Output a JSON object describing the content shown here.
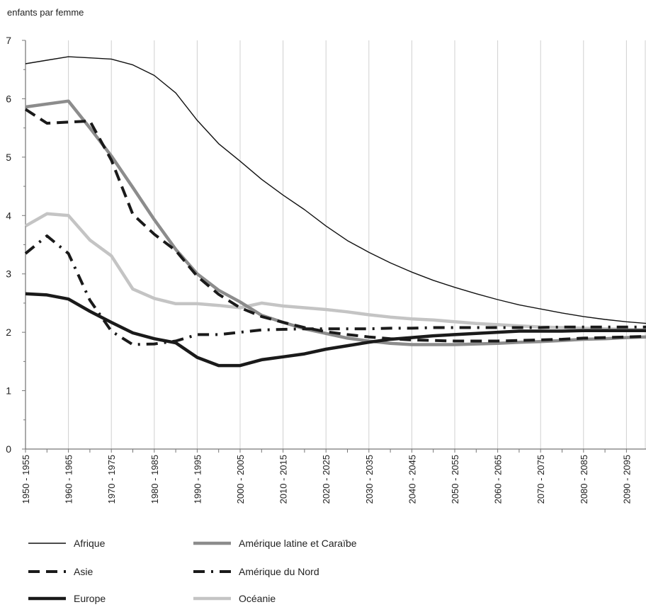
{
  "chart_data": {
    "type": "line",
    "ylabel": "enfants par femme",
    "ylim": [
      0,
      7
    ],
    "yticks": [
      0,
      1,
      2,
      3,
      4,
      5,
      6,
      7
    ],
    "grid": "vertical",
    "legend_position": "bottom",
    "x": [
      "1950-1955",
      "1955-1960",
      "1960-1965",
      "1965-1970",
      "1970-1975",
      "1975-1980",
      "1980-1985",
      "1985-1990",
      "1990-1995",
      "1995-2000",
      "2000-2005",
      "2005-2010",
      "2010-2015",
      "2015-2020",
      "2020-2025",
      "2025-2030",
      "2030-2035",
      "2035-2040",
      "2040-2045",
      "2045-2050",
      "2050-2055",
      "2055-2060",
      "2060-2065",
      "2065-2070",
      "2070-2075",
      "2075-2080",
      "2080-2085",
      "2085-2090",
      "2090-2095",
      "2095-2100"
    ],
    "xtick_labels": [
      "1950-1955",
      "1960-1965",
      "1970-1975",
      "1980-1985",
      "1990-1995",
      "2000-2005",
      "2010-2015",
      "2020-2025",
      "2030-2035",
      "2040-2045",
      "2050-2055",
      "2060-2065",
      "2070-2075",
      "2080-2085",
      "2090-2095"
    ],
    "series": [
      {
        "name": "Afrique",
        "color": "#111111",
        "style": "thin-solid",
        "values": [
          6.6,
          6.66,
          6.72,
          6.7,
          6.68,
          6.58,
          6.4,
          6.1,
          5.63,
          5.23,
          4.93,
          4.62,
          4.35,
          4.1,
          3.82,
          3.57,
          3.37,
          3.19,
          3.03,
          2.89,
          2.77,
          2.66,
          2.56,
          2.47,
          2.4,
          2.33,
          2.27,
          2.22,
          2.18,
          2.15
        ]
      },
      {
        "name": "Asie",
        "color": "#1a1a1a",
        "style": "dashed",
        "values": [
          5.82,
          5.58,
          5.6,
          5.62,
          4.95,
          4.02,
          3.68,
          3.4,
          2.96,
          2.65,
          2.42,
          2.27,
          2.17,
          2.08,
          2.01,
          1.96,
          1.92,
          1.89,
          1.87,
          1.86,
          1.85,
          1.85,
          1.85,
          1.86,
          1.87,
          1.88,
          1.9,
          1.91,
          1.92,
          1.93
        ]
      },
      {
        "name": "Europe",
        "color": "#1a1a1a",
        "style": "thick-solid",
        "values": [
          2.66,
          2.64,
          2.57,
          2.36,
          2.17,
          1.99,
          1.89,
          1.82,
          1.57,
          1.43,
          1.43,
          1.53,
          1.58,
          1.63,
          1.71,
          1.77,
          1.83,
          1.88,
          1.91,
          1.94,
          1.96,
          1.98,
          2.0,
          2.02,
          2.02,
          2.02,
          2.03,
          2.03,
          2.03,
          2.03
        ]
      },
      {
        "name": "Amérique latine et Caraïbe",
        "color": "#8c8c8c",
        "style": "thick-solid",
        "values": [
          5.86,
          5.91,
          5.96,
          5.5,
          5.02,
          4.48,
          3.93,
          3.42,
          3.0,
          2.72,
          2.52,
          2.29,
          2.17,
          2.06,
          1.98,
          1.9,
          1.85,
          1.81,
          1.79,
          1.79,
          1.79,
          1.8,
          1.81,
          1.83,
          1.84,
          1.86,
          1.88,
          1.89,
          1.91,
          1.92
        ]
      },
      {
        "name": "Amérique du Nord",
        "color": "#1a1a1a",
        "style": "dash-dot",
        "values": [
          3.35,
          3.65,
          3.35,
          2.55,
          2.02,
          1.79,
          1.8,
          1.85,
          1.96,
          1.96,
          2.0,
          2.04,
          2.05,
          2.06,
          2.06,
          2.06,
          2.06,
          2.07,
          2.07,
          2.08,
          2.08,
          2.08,
          2.08,
          2.08,
          2.08,
          2.09,
          2.09,
          2.09,
          2.09,
          2.09
        ]
      },
      {
        "name": "Océanie",
        "color": "#c4c4c4",
        "style": "thick-solid",
        "values": [
          3.82,
          4.03,
          4.0,
          3.58,
          3.31,
          2.74,
          2.58,
          2.49,
          2.49,
          2.46,
          2.42,
          2.5,
          2.45,
          2.42,
          2.39,
          2.35,
          2.3,
          2.26,
          2.23,
          2.21,
          2.18,
          2.15,
          2.13,
          2.11,
          2.09,
          2.08,
          2.07,
          2.06,
          2.05,
          2.04
        ]
      }
    ]
  }
}
